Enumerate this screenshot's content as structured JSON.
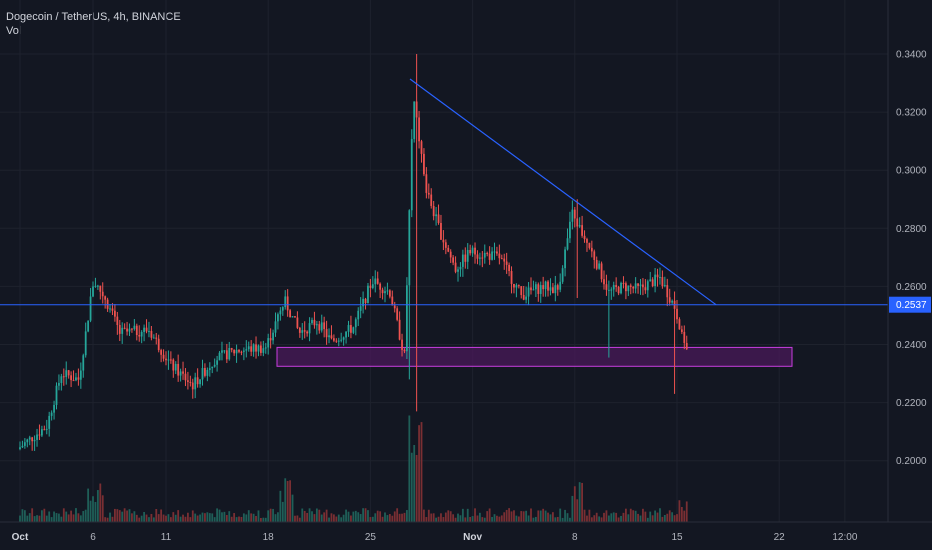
{
  "legend": {
    "symbol": "Dogecoin / TetherUS, 4h, BINANCE",
    "volume_label": "Vol"
  },
  "colors": {
    "background": "#131722",
    "grid": "#1e222d",
    "up": "#26a69a",
    "down": "#ef5350",
    "up_volume": "#1f5f58",
    "down_volume": "#7a2f33",
    "trendline": "#2962ff",
    "horizontal_line": "#2962ff",
    "zone_fill": "#4a1a5a",
    "zone_border": "#c83ee0"
  },
  "chart_data": {
    "type": "candlestick",
    "price_ticks": [
      "0.3400",
      "0.3200",
      "0.3000",
      "0.2800",
      "0.2600",
      "0.2400",
      "0.2200",
      "0.2000"
    ],
    "time_ticks": [
      {
        "label": "Oct",
        "bold": true
      },
      {
        "label": "6",
        "bold": false
      },
      {
        "label": "11",
        "bold": false
      },
      {
        "label": "18",
        "bold": false
      },
      {
        "label": "25",
        "bold": false
      },
      {
        "label": "Nov",
        "bold": true
      },
      {
        "label": "8",
        "bold": false
      },
      {
        "label": "15",
        "bold": false
      },
      {
        "label": "22",
        "bold": false
      },
      {
        "label": "12:00",
        "bold": false
      }
    ],
    "horizontal_line": {
      "price": 0.2537,
      "label": "0.2537"
    },
    "support_zone": {
      "top": 0.239,
      "bottom": 0.2325
    },
    "trendline": {
      "start": {
        "date": "Oct 27",
        "price": 0.33
      },
      "end": {
        "date": "Nov 16",
        "price": 0.2537
      }
    },
    "anchors": [
      {
        "d": 0,
        "p": 0.204
      },
      {
        "d": 2,
        "p": 0.212
      },
      {
        "d": 3,
        "p": 0.23
      },
      {
        "d": 4.2,
        "p": 0.228
      },
      {
        "d": 5.2,
        "p": 0.262
      },
      {
        "d": 6,
        "p": 0.256
      },
      {
        "d": 7,
        "p": 0.244
      },
      {
        "d": 9,
        "p": 0.245
      },
      {
        "d": 10.5,
        "p": 0.233
      },
      {
        "d": 12,
        "p": 0.226
      },
      {
        "d": 13.5,
        "p": 0.235
      },
      {
        "d": 15,
        "p": 0.238
      },
      {
        "d": 17,
        "p": 0.239
      },
      {
        "d": 18.3,
        "p": 0.255
      },
      {
        "d": 19.3,
        "p": 0.244
      },
      {
        "d": 20.5,
        "p": 0.248
      },
      {
        "d": 21.5,
        "p": 0.241
      },
      {
        "d": 23,
        "p": 0.246
      },
      {
        "d": 24.3,
        "p": 0.262
      },
      {
        "d": 25.5,
        "p": 0.258
      },
      {
        "d": 26.5,
        "p": 0.236
      },
      {
        "d": 27.1,
        "p": 0.325
      },
      {
        "d": 28,
        "p": 0.293
      },
      {
        "d": 29,
        "p": 0.278
      },
      {
        "d": 30,
        "p": 0.266
      },
      {
        "d": 31,
        "p": 0.272
      },
      {
        "d": 33,
        "p": 0.27
      },
      {
        "d": 34.5,
        "p": 0.257
      },
      {
        "d": 36,
        "p": 0.26
      },
      {
        "d": 37,
        "p": 0.259
      },
      {
        "d": 38,
        "p": 0.285
      },
      {
        "d": 39.5,
        "p": 0.27
      },
      {
        "d": 40.5,
        "p": 0.258
      },
      {
        "d": 41.5,
        "p": 0.26
      },
      {
        "d": 42.5,
        "p": 0.259
      },
      {
        "d": 44,
        "p": 0.263
      },
      {
        "d": 45,
        "p": 0.253
      },
      {
        "d": 45.8,
        "p": 0.239
      }
    ]
  }
}
